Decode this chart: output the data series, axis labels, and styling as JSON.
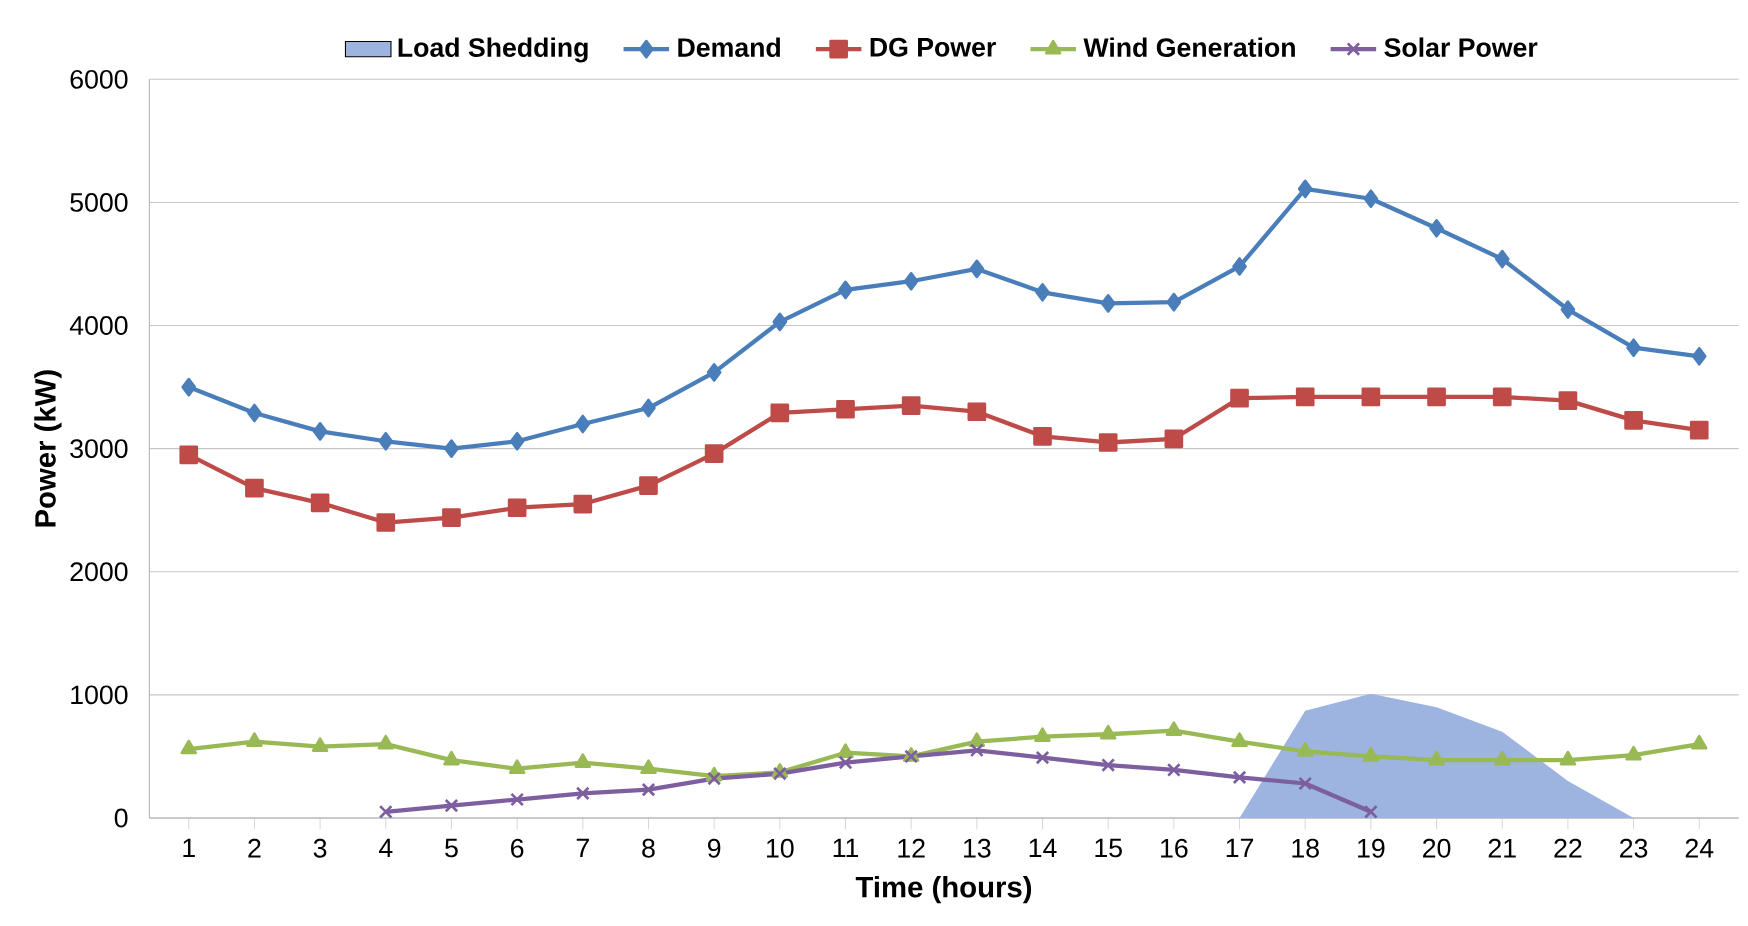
{
  "chart_data": {
    "type": "line",
    "xlabel": "Time (hours)",
    "ylabel": "Power (kW)",
    "categories": [
      "1",
      "2",
      "3",
      "4",
      "5",
      "6",
      "7",
      "8",
      "9",
      "10",
      "11",
      "12",
      "13",
      "14",
      "15",
      "16",
      "17",
      "18",
      "19",
      "20",
      "21",
      "22",
      "23",
      "24"
    ],
    "ylim": [
      0,
      6000
    ],
    "yticks": [
      0,
      1000,
      2000,
      3000,
      4000,
      5000,
      6000
    ],
    "grid": "y",
    "legend": "top",
    "series": [
      {
        "name": "Load Shedding",
        "type": "area",
        "color": "#9db3e0",
        "marker": "none",
        "values": [
          null,
          null,
          null,
          null,
          null,
          null,
          null,
          null,
          null,
          null,
          null,
          null,
          null,
          null,
          null,
          null,
          0,
          870,
          1010,
          900,
          700,
          300,
          0,
          null
        ]
      },
      {
        "name": "Demand",
        "color": "#4a7ebb",
        "marker": "diamond",
        "values": [
          3500,
          3290,
          3140,
          3060,
          3000,
          3060,
          3200,
          3330,
          3620,
          4030,
          4290,
          4360,
          4460,
          4270,
          4180,
          4190,
          4480,
          5110,
          5030,
          4790,
          4540,
          4130,
          3820,
          3750
        ]
      },
      {
        "name": "DG Power",
        "color": "#be4b48",
        "marker": "square",
        "values": [
          2950,
          2680,
          2560,
          2400,
          2440,
          2520,
          2550,
          2700,
          2960,
          3290,
          3320,
          3350,
          3300,
          3100,
          3050,
          3080,
          3410,
          3420,
          3420,
          3420,
          3420,
          3390,
          3230,
          3150
        ]
      },
      {
        "name": "Wind Generation",
        "color": "#98b954",
        "marker": "triangle",
        "values": [
          560,
          620,
          580,
          600,
          470,
          400,
          450,
          400,
          340,
          370,
          530,
          500,
          620,
          660,
          680,
          710,
          620,
          540,
          500,
          470,
          470,
          470,
          510,
          600
        ]
      },
      {
        "name": "Solar Power",
        "color": "#7d5fa0",
        "marker": "cross",
        "values": [
          null,
          null,
          null,
          50,
          100,
          150,
          200,
          230,
          320,
          360,
          450,
          500,
          550,
          490,
          430,
          390,
          330,
          280,
          50,
          null,
          null,
          null,
          null,
          null
        ]
      }
    ]
  }
}
